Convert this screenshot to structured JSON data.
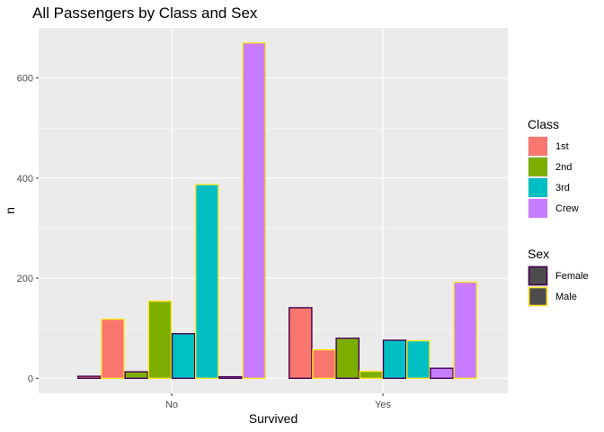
{
  "chart_data": {
    "type": "bar",
    "title": "All Passengers by Class and Sex",
    "xlabel": "Survived",
    "ylabel": "n",
    "categories": [
      "No",
      "Yes"
    ],
    "ylim": [
      -30,
      700
    ],
    "yticks": [
      0,
      200,
      400,
      600
    ],
    "grid": true,
    "legend_position": "right",
    "bars": [
      {
        "survived": "No",
        "class": "1st",
        "sex": "Female",
        "value": 4
      },
      {
        "survived": "No",
        "class": "1st",
        "sex": "Male",
        "value": 118
      },
      {
        "survived": "No",
        "class": "2nd",
        "sex": "Female",
        "value": 13
      },
      {
        "survived": "No",
        "class": "2nd",
        "sex": "Male",
        "value": 154
      },
      {
        "survived": "No",
        "class": "3rd",
        "sex": "Female",
        "value": 89
      },
      {
        "survived": "No",
        "class": "3rd",
        "sex": "Male",
        "value": 387
      },
      {
        "survived": "No",
        "class": "Crew",
        "sex": "Female",
        "value": 3
      },
      {
        "survived": "No",
        "class": "Crew",
        "sex": "Male",
        "value": 670
      },
      {
        "survived": "Yes",
        "class": "1st",
        "sex": "Female",
        "value": 141
      },
      {
        "survived": "Yes",
        "class": "1st",
        "sex": "Male",
        "value": 57
      },
      {
        "survived": "Yes",
        "class": "2nd",
        "sex": "Female",
        "value": 80
      },
      {
        "survived": "Yes",
        "class": "2nd",
        "sex": "Male",
        "value": 14
      },
      {
        "survived": "Yes",
        "class": "3rd",
        "sex": "Female",
        "value": 76
      },
      {
        "survived": "Yes",
        "class": "3rd",
        "sex": "Male",
        "value": 75
      },
      {
        "survived": "Yes",
        "class": "Crew",
        "sex": "Female",
        "value": 20
      },
      {
        "survived": "Yes",
        "class": "Crew",
        "sex": "Male",
        "value": 192
      }
    ],
    "legends": [
      {
        "title": "Class",
        "type": "fill",
        "entries": [
          {
            "label": "1st",
            "color": "#F8766D"
          },
          {
            "label": "2nd",
            "color": "#7CAE00"
          },
          {
            "label": "3rd",
            "color": "#00BFC4"
          },
          {
            "label": "Crew",
            "color": "#C77CFF"
          }
        ]
      },
      {
        "title": "Sex",
        "type": "outline",
        "entries": [
          {
            "label": "Female",
            "color": "#440154"
          },
          {
            "label": "Male",
            "color": "#FDE725"
          }
        ]
      }
    ],
    "colors": {
      "panel": "#EBEBEB",
      "grid": "#FFFFFF",
      "legend_key_fill": "#4D4D4D"
    }
  }
}
